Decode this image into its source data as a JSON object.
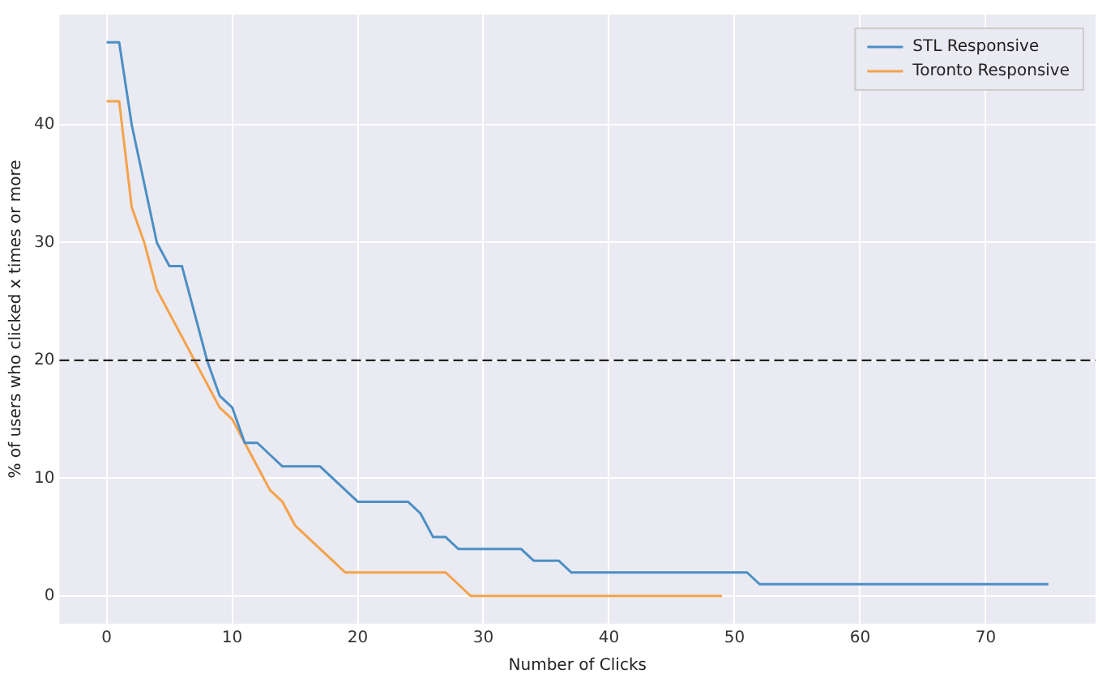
{
  "chart_data": {
    "type": "line",
    "xlabel": "Number of Clicks",
    "ylabel": "% of users who clicked x times or more",
    "xlim": [
      -3.75,
      78.75
    ],
    "xticks": [
      0,
      10,
      20,
      30,
      40,
      50,
      60,
      70
    ],
    "ylim": [
      -2.35,
      49.35
    ],
    "yticks": [
      0,
      10,
      20,
      30,
      40
    ],
    "grid": true,
    "legend": "top right",
    "marker": "none",
    "line_style": "solid",
    "ref_lines": [
      {
        "axis": "y",
        "value": 20,
        "color": "#222222",
        "line_style": "dashed"
      }
    ],
    "series": [
      {
        "name": "STL Responsive",
        "color": "#4c8fc4",
        "x": [
          0,
          1,
          2,
          3,
          4,
          5,
          6,
          7,
          8,
          9,
          10,
          11,
          12,
          13,
          14,
          15,
          16,
          17,
          18,
          19,
          20,
          21,
          22,
          23,
          24,
          25,
          26,
          27,
          28,
          29,
          30,
          31,
          32,
          33,
          34,
          35,
          36,
          37,
          38,
          39,
          40,
          41,
          42,
          43,
          44,
          45,
          46,
          47,
          48,
          49,
          50,
          51,
          52,
          53,
          54,
          55,
          56,
          57,
          58,
          59,
          60,
          61,
          62,
          63,
          64,
          65,
          66,
          67,
          68,
          69,
          70,
          71,
          72,
          73,
          74,
          75
        ],
        "values": [
          47,
          47,
          40,
          35,
          30,
          28,
          28,
          24,
          20,
          17,
          16,
          13,
          13,
          12,
          11,
          11,
          11,
          11,
          10,
          9,
          8,
          8,
          8,
          8,
          8,
          7,
          5,
          5,
          4,
          4,
          4,
          4,
          4,
          4,
          3,
          3,
          3,
          2,
          2,
          2,
          2,
          2,
          2,
          2,
          2,
          2,
          2,
          2,
          2,
          2,
          2,
          2,
          1,
          1,
          1,
          1,
          1,
          1,
          1,
          1,
          1,
          1,
          1,
          1,
          1,
          1,
          1,
          1,
          1,
          1,
          1,
          1,
          1,
          1,
          1,
          1
        ]
      },
      {
        "name": "Toronto Responsive",
        "color": "#f5a24b",
        "x": [
          0,
          1,
          2,
          3,
          4,
          5,
          6,
          7,
          8,
          9,
          10,
          11,
          12,
          13,
          14,
          15,
          16,
          17,
          18,
          19,
          20,
          21,
          22,
          23,
          24,
          25,
          26,
          27,
          28,
          29,
          30,
          31,
          32,
          33,
          34,
          35,
          36,
          37,
          38,
          39,
          40,
          41,
          42,
          43,
          44,
          45,
          46,
          47,
          48,
          49
        ],
        "values": [
          42,
          42,
          33,
          30,
          26,
          24,
          22,
          20,
          18,
          16,
          15,
          13,
          11,
          9,
          8,
          6,
          5,
          4,
          3,
          2,
          2,
          2,
          2,
          2,
          2,
          2,
          2,
          2,
          1,
          0,
          0,
          0,
          0,
          0,
          0,
          0,
          0,
          0,
          0,
          0,
          0,
          0,
          0,
          0,
          0,
          0,
          0,
          0,
          0,
          0
        ]
      }
    ]
  }
}
